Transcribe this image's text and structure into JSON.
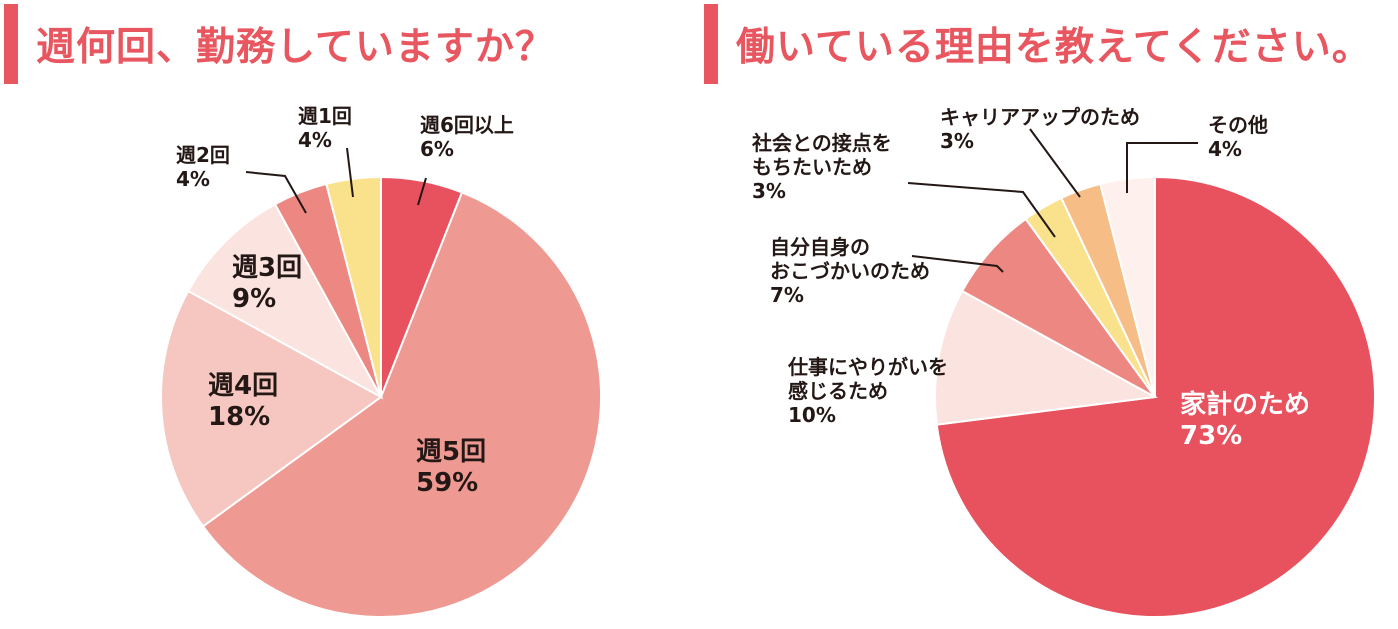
{
  "chart_data": [
    {
      "type": "pie",
      "title": "週何回、勤務していますか？",
      "slices": [
        {
          "label": "週6回以上",
          "value": 6,
          "color": "#e8525e"
        },
        {
          "label": "週5回",
          "value": 59,
          "color": "#ef9993"
        },
        {
          "label": "週4回",
          "value": 18,
          "color": "#f6c6c0"
        },
        {
          "label": "週3回",
          "value": 9,
          "color": "#fbe3df"
        },
        {
          "label": "週2回",
          "value": 4,
          "color": "#ec8782"
        },
        {
          "label": "週1回",
          "value": 4,
          "color": "#fae28c"
        }
      ],
      "value_labels": [
        "6%",
        "59%",
        "18%",
        "9%",
        "4%",
        "4%"
      ]
    },
    {
      "type": "pie",
      "title": "働いている理由を教えてください。",
      "slices": [
        {
          "label": "家計のため",
          "value": 73,
          "color": "#e8525e"
        },
        {
          "label": "仕事にやりがいを感じるため",
          "value": 10,
          "color": "#fbe3df"
        },
        {
          "label": "自分自身のおこづかいのため",
          "value": 7,
          "color": "#ec8782"
        },
        {
          "label": "社会との接点をもちたいため",
          "value": 3,
          "color": "#fae28c"
        },
        {
          "label": "キャリアアップのため",
          "value": 3,
          "color": "#f6bd86"
        },
        {
          "label": "その他",
          "value": 4,
          "color": "#fdf0ed"
        }
      ],
      "label_lines": {
        "slice1": [
          "仕事にやりがいを",
          "感じるため"
        ],
        "slice2": [
          "自分自身の",
          "おこづかいのため"
        ],
        "slice3": [
          "社会との接点を",
          "もちたいため"
        ]
      },
      "value_labels": [
        "73%",
        "10%",
        "7%",
        "3%",
        "3%",
        "4%"
      ]
    }
  ]
}
